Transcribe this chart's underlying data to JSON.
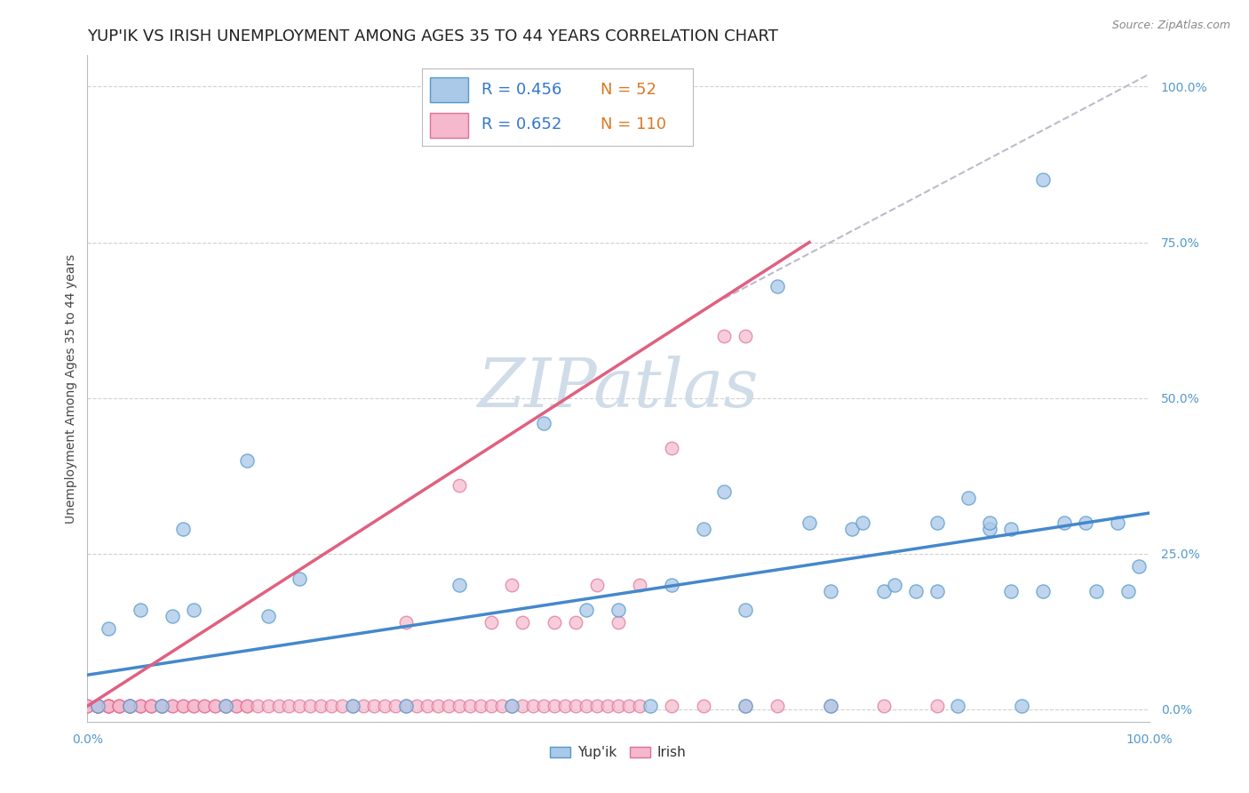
{
  "title": "YUP'IK VS IRISH UNEMPLOYMENT AMONG AGES 35 TO 44 YEARS CORRELATION CHART",
  "source": "Source: ZipAtlas.com",
  "ylabel": "Unemployment Among Ages 35 to 44 years",
  "ytick_labels": [
    "0.0%",
    "25.0%",
    "50.0%",
    "75.0%",
    "100.0%"
  ],
  "ytick_positions": [
    0,
    0.25,
    0.5,
    0.75,
    1.0
  ],
  "xtick_labels": [
    "0.0%",
    "100.0%"
  ],
  "xtick_positions": [
    0.0,
    1.0
  ],
  "xlim": [
    0,
    1.0
  ],
  "ylim": [
    -0.02,
    1.05
  ],
  "yupik_fill_color": "#aac8e8",
  "yupik_edge_color": "#5599cc",
  "irish_fill_color": "#f5b8cc",
  "irish_edge_color": "#e07090",
  "yupik_line_color": "#4488cc",
  "irish_line_color": "#e06080",
  "dashed_line_color": "#bbbbcc",
  "grid_color": "#cccccc",
  "background_color": "#ffffff",
  "watermark": "ZIPatlas",
  "watermark_color": "#d0dce8",
  "yupik_line_x": [
    0.0,
    1.0
  ],
  "yupik_line_y": [
    0.055,
    0.315
  ],
  "irish_line_x": [
    0.0,
    0.68
  ],
  "irish_line_y": [
    0.005,
    0.75
  ],
  "dash_line_x": [
    0.6,
    1.0
  ],
  "dash_line_y": [
    0.66,
    1.02
  ],
  "yupik_points": [
    [
      0.01,
      0.005
    ],
    [
      0.02,
      0.13
    ],
    [
      0.04,
      0.005
    ],
    [
      0.05,
      0.16
    ],
    [
      0.07,
      0.005
    ],
    [
      0.08,
      0.15
    ],
    [
      0.09,
      0.29
    ],
    [
      0.1,
      0.16
    ],
    [
      0.13,
      0.005
    ],
    [
      0.15,
      0.4
    ],
    [
      0.17,
      0.15
    ],
    [
      0.2,
      0.21
    ],
    [
      0.25,
      0.005
    ],
    [
      0.3,
      0.005
    ],
    [
      0.35,
      0.2
    ],
    [
      0.4,
      0.005
    ],
    [
      0.43,
      0.46
    ],
    [
      0.47,
      0.16
    ],
    [
      0.5,
      0.16
    ],
    [
      0.53,
      0.005
    ],
    [
      0.55,
      0.2
    ],
    [
      0.58,
      0.29
    ],
    [
      0.62,
      0.16
    ],
    [
      0.65,
      0.68
    ],
    [
      0.7,
      0.005
    ],
    [
      0.72,
      0.29
    ],
    [
      0.75,
      0.19
    ],
    [
      0.78,
      0.19
    ],
    [
      0.8,
      0.19
    ],
    [
      0.82,
      0.005
    ],
    [
      0.83,
      0.34
    ],
    [
      0.85,
      0.29
    ],
    [
      0.87,
      0.29
    ],
    [
      0.88,
      0.005
    ],
    [
      0.9,
      0.85
    ],
    [
      0.6,
      0.35
    ],
    [
      0.62,
      0.005
    ],
    [
      0.68,
      0.3
    ],
    [
      0.7,
      0.19
    ],
    [
      0.73,
      0.3
    ],
    [
      0.76,
      0.2
    ],
    [
      0.8,
      0.3
    ],
    [
      0.85,
      0.3
    ],
    [
      0.87,
      0.19
    ],
    [
      0.9,
      0.19
    ],
    [
      0.92,
      0.3
    ],
    [
      0.94,
      0.3
    ],
    [
      0.95,
      0.19
    ],
    [
      0.97,
      0.3
    ],
    [
      0.98,
      0.19
    ],
    [
      0.99,
      0.23
    ]
  ],
  "irish_points_bottom": [
    [
      0.0,
      0.005
    ],
    [
      0.0,
      0.005
    ],
    [
      0.0,
      0.005
    ],
    [
      0.01,
      0.005
    ],
    [
      0.01,
      0.005
    ],
    [
      0.01,
      0.005
    ],
    [
      0.01,
      0.005
    ],
    [
      0.01,
      0.005
    ],
    [
      0.01,
      0.005
    ],
    [
      0.01,
      0.005
    ],
    [
      0.02,
      0.005
    ],
    [
      0.02,
      0.005
    ],
    [
      0.02,
      0.005
    ],
    [
      0.02,
      0.005
    ],
    [
      0.02,
      0.005
    ],
    [
      0.02,
      0.005
    ],
    [
      0.03,
      0.005
    ],
    [
      0.03,
      0.005
    ],
    [
      0.03,
      0.005
    ],
    [
      0.03,
      0.005
    ],
    [
      0.04,
      0.005
    ],
    [
      0.04,
      0.005
    ],
    [
      0.04,
      0.005
    ],
    [
      0.04,
      0.005
    ],
    [
      0.05,
      0.005
    ],
    [
      0.05,
      0.005
    ],
    [
      0.05,
      0.005
    ],
    [
      0.06,
      0.005
    ],
    [
      0.06,
      0.005
    ],
    [
      0.06,
      0.005
    ],
    [
      0.07,
      0.005
    ],
    [
      0.07,
      0.005
    ],
    [
      0.07,
      0.005
    ],
    [
      0.08,
      0.005
    ],
    [
      0.08,
      0.005
    ],
    [
      0.09,
      0.005
    ],
    [
      0.09,
      0.005
    ],
    [
      0.1,
      0.005
    ],
    [
      0.1,
      0.005
    ],
    [
      0.11,
      0.005
    ],
    [
      0.11,
      0.005
    ],
    [
      0.12,
      0.005
    ],
    [
      0.12,
      0.005
    ],
    [
      0.13,
      0.005
    ],
    [
      0.13,
      0.005
    ],
    [
      0.14,
      0.005
    ],
    [
      0.14,
      0.005
    ],
    [
      0.15,
      0.005
    ],
    [
      0.15,
      0.005
    ],
    [
      0.16,
      0.005
    ],
    [
      0.17,
      0.005
    ],
    [
      0.18,
      0.005
    ],
    [
      0.19,
      0.005
    ],
    [
      0.2,
      0.005
    ],
    [
      0.21,
      0.005
    ],
    [
      0.22,
      0.005
    ],
    [
      0.23,
      0.005
    ],
    [
      0.24,
      0.005
    ],
    [
      0.25,
      0.005
    ],
    [
      0.26,
      0.005
    ],
    [
      0.27,
      0.005
    ],
    [
      0.28,
      0.005
    ],
    [
      0.29,
      0.005
    ],
    [
      0.3,
      0.005
    ],
    [
      0.31,
      0.005
    ],
    [
      0.32,
      0.005
    ],
    [
      0.33,
      0.005
    ],
    [
      0.34,
      0.005
    ],
    [
      0.35,
      0.005
    ],
    [
      0.36,
      0.005
    ],
    [
      0.37,
      0.005
    ],
    [
      0.38,
      0.005
    ],
    [
      0.39,
      0.005
    ],
    [
      0.4,
      0.005
    ],
    [
      0.41,
      0.005
    ],
    [
      0.42,
      0.005
    ],
    [
      0.43,
      0.005
    ],
    [
      0.44,
      0.005
    ],
    [
      0.45,
      0.005
    ],
    [
      0.46,
      0.005
    ],
    [
      0.47,
      0.005
    ],
    [
      0.48,
      0.005
    ],
    [
      0.49,
      0.005
    ],
    [
      0.5,
      0.005
    ],
    [
      0.51,
      0.005
    ],
    [
      0.52,
      0.005
    ],
    [
      0.55,
      0.005
    ],
    [
      0.58,
      0.005
    ],
    [
      0.62,
      0.005
    ],
    [
      0.65,
      0.005
    ],
    [
      0.7,
      0.005
    ],
    [
      0.75,
      0.005
    ],
    [
      0.8,
      0.005
    ]
  ],
  "irish_points_mid": [
    [
      0.3,
      0.14
    ],
    [
      0.35,
      0.36
    ],
    [
      0.38,
      0.14
    ],
    [
      0.4,
      0.2
    ],
    [
      0.41,
      0.14
    ],
    [
      0.44,
      0.14
    ],
    [
      0.46,
      0.14
    ],
    [
      0.48,
      0.2
    ],
    [
      0.5,
      0.14
    ],
    [
      0.52,
      0.2
    ],
    [
      0.55,
      0.42
    ],
    [
      0.6,
      0.6
    ],
    [
      0.62,
      0.6
    ]
  ],
  "title_fontsize": 13,
  "axis_label_fontsize": 10,
  "tick_fontsize": 10,
  "legend_fontsize": 13,
  "source_fontsize": 9
}
